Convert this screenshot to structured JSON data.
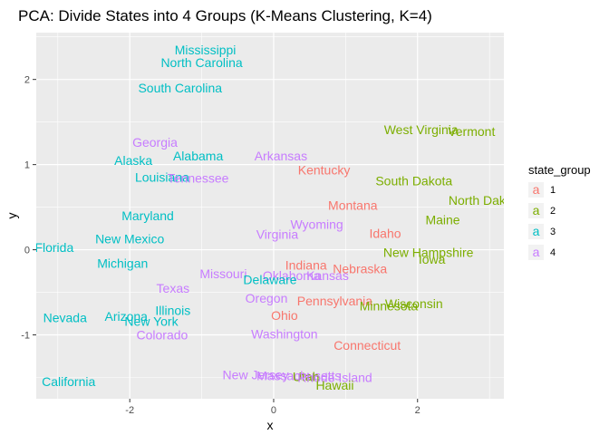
{
  "chart_data": {
    "type": "scatter",
    "title": "PCA: Divide States into 4 Groups (K-Means Clustering, K=4)",
    "xlabel": "x",
    "ylabel": "y",
    "xlim": [
      -3.3,
      3.2
    ],
    "ylim": [
      -1.75,
      2.55
    ],
    "xticks": [
      -2,
      0,
      2
    ],
    "yticks": [
      -1,
      0,
      1,
      2
    ],
    "grid": true,
    "legend": {
      "title": "state_group",
      "placement": "right",
      "key_glyph": "a",
      "entries": [
        {
          "label": "1",
          "color": "#F8766D"
        },
        {
          "label": "2",
          "color": "#7CAE00"
        },
        {
          "label": "3",
          "color": "#00BFC4"
        },
        {
          "label": "4",
          "color": "#C77CFF"
        }
      ]
    },
    "colors": {
      "1": "#F8766D",
      "2": "#7CAE00",
      "3": "#00BFC4",
      "4": "#C77CFF"
    },
    "points": [
      {
        "label": "Mississippi",
        "x": -0.95,
        "y": 2.35,
        "group": "3"
      },
      {
        "label": "North Carolina",
        "x": -1.0,
        "y": 2.2,
        "group": "3"
      },
      {
        "label": "South Carolina",
        "x": -1.3,
        "y": 1.9,
        "group": "3"
      },
      {
        "label": "Georgia",
        "x": -1.65,
        "y": 1.26,
        "group": "4"
      },
      {
        "label": "Alabama",
        "x": -1.05,
        "y": 1.1,
        "group": "3"
      },
      {
        "label": "Alaska",
        "x": -1.95,
        "y": 1.05,
        "group": "3"
      },
      {
        "label": "Louisiana",
        "x": -1.55,
        "y": 0.85,
        "group": "3"
      },
      {
        "label": "Tennessee",
        "x": -1.05,
        "y": 0.84,
        "group": "4"
      },
      {
        "label": "Arkansas",
        "x": 0.1,
        "y": 1.1,
        "group": "4"
      },
      {
        "label": "Kentucky",
        "x": 0.7,
        "y": 0.94,
        "group": "1"
      },
      {
        "label": "West Virginia",
        "x": 2.05,
        "y": 1.41,
        "group": "2"
      },
      {
        "label": "Vermont",
        "x": 2.75,
        "y": 1.39,
        "group": "2"
      },
      {
        "label": "South Dakota",
        "x": 1.95,
        "y": 0.81,
        "group": "2"
      },
      {
        "label": "North Dakota",
        "x": 2.95,
        "y": 0.58,
        "group": "2"
      },
      {
        "label": "Montana",
        "x": 1.1,
        "y": 0.52,
        "group": "1"
      },
      {
        "label": "Maine",
        "x": 2.35,
        "y": 0.35,
        "group": "2"
      },
      {
        "label": "Maryland",
        "x": -1.75,
        "y": 0.4,
        "group": "3"
      },
      {
        "label": "Wyoming",
        "x": 0.6,
        "y": 0.3,
        "group": "4"
      },
      {
        "label": "Virginia",
        "x": 0.05,
        "y": 0.18,
        "group": "4"
      },
      {
        "label": "Idaho",
        "x": 1.55,
        "y": 0.19,
        "group": "1"
      },
      {
        "label": "New Mexico",
        "x": -2.0,
        "y": 0.13,
        "group": "3"
      },
      {
        "label": "Florida",
        "x": -3.05,
        "y": 0.03,
        "group": "3"
      },
      {
        "label": "New Hampshire",
        "x": 2.15,
        "y": -0.03,
        "group": "2"
      },
      {
        "label": "Iowa",
        "x": 2.2,
        "y": -0.11,
        "group": "2"
      },
      {
        "label": "Michigan",
        "x": -2.1,
        "y": -0.16,
        "group": "3"
      },
      {
        "label": "Indiana",
        "x": 0.45,
        "y": -0.18,
        "group": "1"
      },
      {
        "label": "Nebraska",
        "x": 1.2,
        "y": -0.22,
        "group": "1"
      },
      {
        "label": "Missouri",
        "x": -0.7,
        "y": -0.28,
        "group": "4"
      },
      {
        "label": "Oklahoma",
        "x": 0.25,
        "y": -0.3,
        "group": "4"
      },
      {
        "label": "Kansas",
        "x": 0.75,
        "y": -0.3,
        "group": "4"
      },
      {
        "label": "Delaware",
        "x": -0.05,
        "y": -0.35,
        "group": "3"
      },
      {
        "label": "Texas",
        "x": -1.4,
        "y": -0.45,
        "group": "4"
      },
      {
        "label": "Oregon",
        "x": -0.1,
        "y": -0.57,
        "group": "4"
      },
      {
        "label": "Pennsylvania",
        "x": 0.85,
        "y": -0.6,
        "group": "1"
      },
      {
        "label": "Wisconsin",
        "x": 1.95,
        "y": -0.63,
        "group": "2"
      },
      {
        "label": "Minnesota",
        "x": 1.6,
        "y": -0.66,
        "group": "2"
      },
      {
        "label": "Illinois",
        "x": -1.4,
        "y": -0.71,
        "group": "3"
      },
      {
        "label": "Ohio",
        "x": 0.15,
        "y": -0.77,
        "group": "1"
      },
      {
        "label": "Nevada",
        "x": -2.9,
        "y": -0.8,
        "group": "3"
      },
      {
        "label": "Arizona",
        "x": -2.05,
        "y": -0.78,
        "group": "3"
      },
      {
        "label": "New York",
        "x": -1.7,
        "y": -0.84,
        "group": "3"
      },
      {
        "label": "Colorado",
        "x": -1.55,
        "y": -1.0,
        "group": "4"
      },
      {
        "label": "Washington",
        "x": 0.15,
        "y": -0.99,
        "group": "4"
      },
      {
        "label": "Connecticut",
        "x": 1.3,
        "y": -1.12,
        "group": "1"
      },
      {
        "label": "New Jersey",
        "x": -0.25,
        "y": -1.47,
        "group": "4"
      },
      {
        "label": "Massachusetts",
        "x": 0.35,
        "y": -1.48,
        "group": "4"
      },
      {
        "label": "Utah",
        "x": 0.45,
        "y": -1.49,
        "group": "2"
      },
      {
        "label": "Rhode Island",
        "x": 0.85,
        "y": -1.5,
        "group": "4"
      },
      {
        "label": "Hawaii",
        "x": 0.85,
        "y": -1.59,
        "group": "2"
      },
      {
        "label": "California",
        "x": -2.85,
        "y": -1.55,
        "group": "3"
      }
    ]
  }
}
